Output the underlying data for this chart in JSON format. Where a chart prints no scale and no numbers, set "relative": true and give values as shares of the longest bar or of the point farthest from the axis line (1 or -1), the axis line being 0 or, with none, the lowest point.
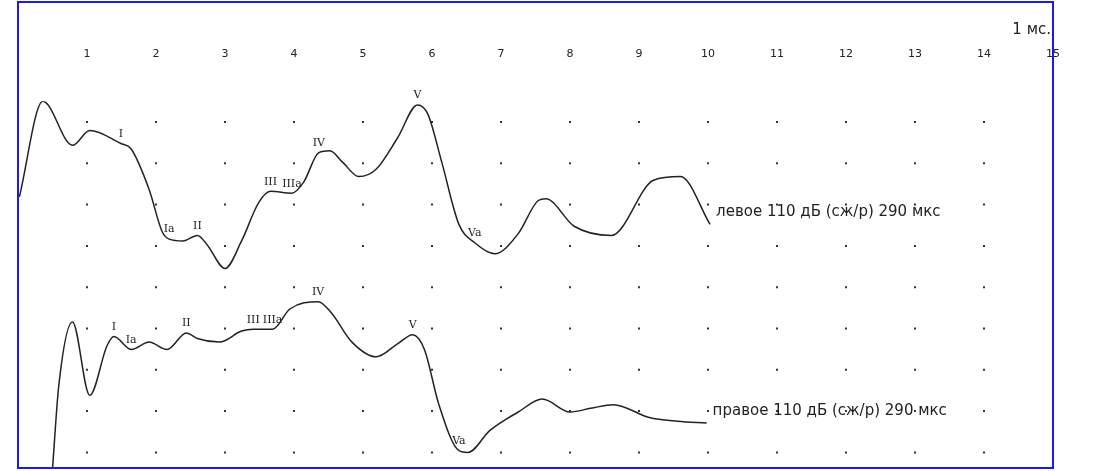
{
  "chart_data": {
    "type": "line",
    "relative": true,
    "grid": "x",
    "legend": false,
    "marker": "none",
    "line_style": "solid",
    "xlim": [
      0,
      15
    ],
    "xticks": [
      1,
      2,
      3,
      4,
      5,
      6,
      7,
      8,
      9,
      10,
      11,
      12,
      13,
      14,
      15
    ],
    "annotations": [
      "1 мс.",
      {
        "text": "I",
        "x": 1.49,
        "y": 0.885
      },
      {
        "text": "Ia",
        "x": 2.19,
        "y": 0.625
      },
      {
        "text": "II",
        "x": 2.6,
        "y": 0.635
      },
      {
        "text": "III",
        "x": 3.66,
        "y": 0.755
      },
      {
        "text": "IIIa",
        "x": 3.97,
        "y": 0.75
      },
      {
        "text": "IV",
        "x": 4.36,
        "y": 0.86
      },
      {
        "text": "V",
        "x": 5.79,
        "y": 0.99
      },
      {
        "text": "Va",
        "x": 6.62,
        "y": 0.615
      },
      {
        "text": "I",
        "x": 1.39,
        "y": 0.36
      },
      {
        "text": "Ia",
        "x": 1.64,
        "y": 0.325
      },
      {
        "text": "II",
        "x": 2.44,
        "y": 0.37
      },
      {
        "text": "III",
        "x": 3.41,
        "y": 0.38
      },
      {
        "text": "IIIa",
        "x": 3.69,
        "y": 0.38
      },
      {
        "text": "IV",
        "x": 4.35,
        "y": 0.455
      },
      {
        "text": "V",
        "x": 5.72,
        "y": 0.365
      },
      {
        "text": "Va",
        "x": 6.39,
        "y": 0.05
      }
    ],
    "series": [
      {
        "name": "левое 110 дБ (сж/р) 290 мкс",
        "color": "#222222",
        "x": [
          0.02,
          0.36,
          0.79,
          1.04,
          1.49,
          1.64,
          1.9,
          2.09,
          2.19,
          2.39,
          2.6,
          2.74,
          3.0,
          3.24,
          3.49,
          3.66,
          3.97,
          4.14,
          4.36,
          4.52,
          4.7,
          4.94,
          5.19,
          5.5,
          5.79,
          5.94,
          6.14,
          6.39,
          6.62,
          6.91,
          7.25,
          7.54,
          7.65,
          8.06,
          8.6,
          9.21,
          9.6,
          10.03
        ],
        "values": [
          0.74,
          1,
          0.88,
          0.92,
          0.885,
          0.87,
          0.76,
          0.645,
          0.625,
          0.62,
          0.635,
          0.61,
          0.545,
          0.62,
          0.725,
          0.755,
          0.75,
          0.78,
          0.86,
          0.865,
          0.835,
          0.795,
          0.815,
          0.9,
          0.99,
          0.965,
          0.835,
          0.665,
          0.615,
          0.585,
          0.64,
          0.73,
          0.735,
          0.66,
          0.635,
          0.785,
          0.795,
          0.665
        ]
      },
      {
        "name": "правое 110 дБ (сж/р) 290 мкс",
        "color": "#222222",
        "x": [
          0.5,
          0.59,
          0.79,
          1.04,
          1.29,
          1.39,
          1.64,
          1.9,
          2.16,
          2.44,
          2.6,
          2.92,
          3.24,
          3.41,
          3.69,
          3.94,
          4.35,
          4.54,
          4.84,
          5.19,
          5.5,
          5.72,
          5.89,
          6.1,
          6.39,
          6.52,
          6.84,
          7.25,
          7.6,
          8.0,
          8.3,
          8.63,
          9.15,
          9.56,
          9.98
        ],
        "values": [
          0,
          0.225,
          0.4,
          0.2,
          0.335,
          0.36,
          0.325,
          0.345,
          0.325,
          0.37,
          0.355,
          0.345,
          0.375,
          0.38,
          0.38,
          0.435,
          0.455,
          0.425,
          0.345,
          0.305,
          0.34,
          0.365,
          0.325,
          0.175,
          0.05,
          0.045,
          0.105,
          0.155,
          0.19,
          0.155,
          0.165,
          0.175,
          0.14,
          0.13,
          0.125
        ]
      }
    ]
  }
}
